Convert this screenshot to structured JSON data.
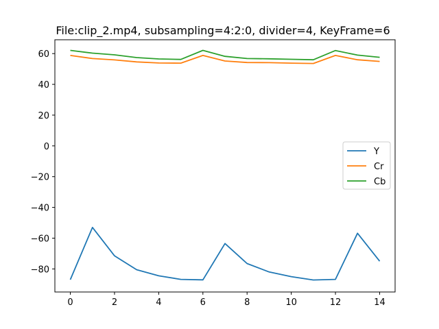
{
  "chart_data": {
    "type": "line",
    "title": "File:clip_2.mp4, subsampling=4:2:0, divider=4, KeyFrame=6",
    "xlabel": "",
    "ylabel": "",
    "x": [
      0,
      1,
      2,
      3,
      4,
      5,
      6,
      7,
      8,
      9,
      10,
      11,
      12,
      13,
      14
    ],
    "xlim": [
      -0.7,
      14.7
    ],
    "ylim": [
      -95,
      69
    ],
    "xticks": [
      0,
      2,
      4,
      6,
      8,
      10,
      12,
      14
    ],
    "yticks": [
      60,
      40,
      20,
      0,
      -20,
      -40,
      -60,
      -80
    ],
    "xtick_labels": [
      "0",
      "2",
      "4",
      "6",
      "8",
      "10",
      "12",
      "14"
    ],
    "ytick_labels": [
      "60",
      "40",
      "20",
      "0",
      "−20",
      "−40",
      "−60",
      "−80"
    ],
    "grid": false,
    "legend_position": "center-right",
    "series": [
      {
        "name": "Y",
        "color": "#1f77b4",
        "values": [
          -87.0,
          -53.0,
          -71.5,
          -80.5,
          -84.5,
          -86.8,
          -87.1,
          -63.5,
          -76.5,
          -82.0,
          -85.0,
          -87.2,
          -86.8,
          -56.8,
          -75.0
        ]
      },
      {
        "name": "Cr",
        "color": "#ff7f0e",
        "values": [
          58.8,
          56.8,
          55.9,
          54.6,
          53.9,
          53.8,
          58.8,
          55.2,
          54.2,
          54.1,
          53.8,
          53.6,
          58.8,
          56.0,
          54.9
        ]
      },
      {
        "name": "Cb",
        "color": "#2ca02c",
        "values": [
          62.1,
          60.3,
          59.2,
          57.4,
          56.5,
          56.2,
          62.1,
          58.2,
          56.8,
          56.6,
          56.3,
          56.0,
          62.0,
          59.0,
          57.6
        ]
      }
    ]
  }
}
